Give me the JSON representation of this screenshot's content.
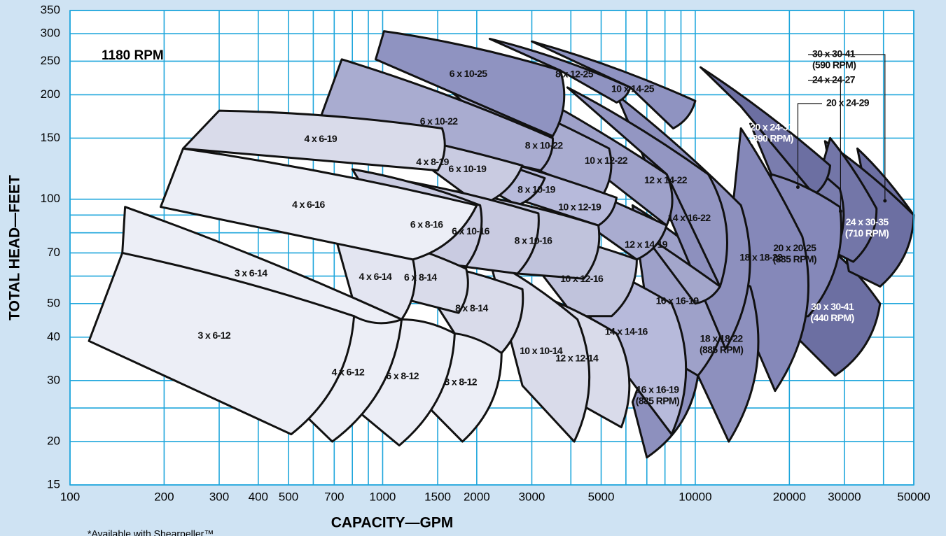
{
  "chart_data": {
    "type": "region",
    "annotation": "1180 RPM",
    "footnote": "*Available with Shearpeller™",
    "x_label": "CAPACITY—GPM",
    "y_label": "TOTAL HEAD—FEET",
    "log_x": true,
    "log_y": true,
    "grid": true,
    "xlim": [
      100,
      50000
    ],
    "ylim": [
      15,
      350
    ],
    "xticks": [
      100,
      200,
      300,
      400,
      500,
      700,
      1000,
      1500,
      2000,
      3000,
      5000,
      10000,
      20000,
      30000,
      50000
    ],
    "yticks": [
      15,
      20,
      30,
      40,
      50,
      70,
      100,
      150,
      200,
      250,
      300,
      350
    ],
    "xgrid": [
      600,
      800,
      900,
      4000,
      6000,
      7000,
      8000,
      9000,
      40000
    ],
    "ygrid": [
      25,
      60,
      80,
      90
    ],
    "regions": [
      {
        "label": [
          "3 x 6-12"
        ],
        "color": "#eceef6",
        "text_color": "#111111",
        "points": [
          [
            147,
            70
          ],
          [
            810,
            46
          ],
          [
            510,
            21
          ],
          [
            115,
            39
          ]
        ]
      },
      {
        "label": [
          "3 x 6-14"
        ],
        "color": "#eceef6",
        "text_color": "#111111",
        "points": [
          [
            150,
            95
          ],
          [
            1150,
            45
          ],
          [
            810,
            46
          ],
          [
            147,
            70
          ]
        ]
      },
      {
        "label": [
          "4 x 6-12"
        ],
        "color": "#eceef6",
        "text_color": "#111111",
        "points": [
          [
            810,
            46
          ],
          [
            1150,
            45
          ],
          [
            690,
            20
          ],
          [
            560,
            24
          ]
        ]
      },
      {
        "label": [
          "6 x 8-12"
        ],
        "color": "#eceef6",
        "text_color": "#111111",
        "points": [
          [
            1150,
            45
          ],
          [
            1700,
            41
          ],
          [
            1130,
            19.5
          ],
          [
            810,
            25
          ]
        ]
      },
      {
        "label": [
          "8 x 8-12"
        ],
        "color": "#eceef6",
        "text_color": "#111111",
        "points": [
          [
            1700,
            41
          ],
          [
            2400,
            36
          ],
          [
            1800,
            20
          ],
          [
            1350,
            26
          ]
        ]
      },
      {
        "label": [
          "4 x 6-16"
        ],
        "color": "#eceef6",
        "text_color": "#111111",
        "points": [
          [
            230,
            140
          ],
          [
            2000,
            96
          ],
          [
            1250,
            67
          ],
          [
            195,
            95
          ]
        ]
      },
      {
        "label": [
          "4 x 6-14"
        ],
        "color": "#e3e5f1",
        "text_color": "#111111",
        "points": [
          [
            700,
            80
          ],
          [
            1250,
            67
          ],
          [
            1150,
            45
          ],
          [
            800,
            52
          ]
        ]
      },
      {
        "label": [
          "6 x 8-14"
        ],
        "color": "#d9dbea",
        "text_color": "#111111",
        "points": [
          [
            830,
            80
          ],
          [
            1850,
            63
          ],
          [
            1750,
            47
          ],
          [
            1130,
            52
          ]
        ]
      },
      {
        "label": [
          "8 x 8-14"
        ],
        "color": "#d9dbea",
        "text_color": "#111111",
        "points": [
          [
            1200,
            67
          ],
          [
            2800,
            55
          ],
          [
            2400,
            36
          ],
          [
            1700,
            41
          ]
        ]
      },
      {
        "label": [
          "4 x 6-19"
        ],
        "color": "#d9dbea",
        "text_color": "#111111",
        "points": [
          [
            300,
            180
          ],
          [
            1550,
            160
          ],
          [
            1500,
            121
          ],
          [
            230,
            140
          ]
        ]
      },
      {
        "label": [
          "6 x 8-16"
        ],
        "color": "#c9cbe1",
        "text_color": "#111111",
        "points": [
          [
            800,
            122
          ],
          [
            2050,
            96
          ],
          [
            1850,
            64
          ],
          [
            1200,
            67
          ]
        ]
      },
      {
        "label": [
          "6 x 10-16"
        ],
        "color": "#c9cbe1",
        "text_color": "#111111",
        "points": [
          [
            870,
            118
          ],
          [
            3150,
            91
          ],
          [
            2700,
            61
          ],
          [
            1800,
            64
          ]
        ]
      },
      {
        "label": [
          "4 x 8-19"
        ],
        "color": "#c9cbe1",
        "text_color": "#111111",
        "points": [
          [
            580,
            170
          ],
          [
            2800,
            125
          ],
          [
            2050,
            96
          ],
          [
            1300,
            130
          ]
        ]
      },
      {
        "label": [
          "10 x 10-14"
        ],
        "color": "#d9dbea",
        "text_color": "#111111",
        "points": [
          [
            2200,
            67
          ],
          [
            4200,
            45
          ],
          [
            4100,
            20
          ],
          [
            2800,
            29
          ]
        ]
      },
      {
        "label": [
          "12 x 12-14"
        ],
        "color": "#d9dbea",
        "text_color": "#111111",
        "points": [
          [
            2800,
            55
          ],
          [
            5600,
            41
          ],
          [
            5800,
            22
          ],
          [
            3350,
            29
          ]
        ]
      },
      {
        "label": [
          "8 x 10-16"
        ],
        "color": "#c0c3dc",
        "text_color": "#111111",
        "points": [
          [
            1450,
            108
          ],
          [
            4900,
            84
          ],
          [
            4400,
            59
          ],
          [
            2700,
            61
          ]
        ]
      },
      {
        "label": [
          "6 x 10-19"
        ],
        "color": "#b7badb",
        "text_color": "#111111",
        "points": [
          [
            800,
            165
          ],
          [
            3300,
            115
          ],
          [
            2700,
            96
          ],
          [
            1700,
            121
          ]
        ]
      },
      {
        "label": [
          "6 x 10-22"
        ],
        "color": "#a9acd0",
        "text_color": "#111111",
        "points": [
          [
            740,
            253
          ],
          [
            3500,
            150
          ],
          [
            3200,
            121
          ],
          [
            630,
            170
          ]
        ]
      },
      {
        "label": [
          "10 x 12-16"
        ],
        "color": "#c0c3dc",
        "text_color": "#111111",
        "points": [
          [
            2450,
            84
          ],
          [
            6500,
            67
          ],
          [
            5400,
            46
          ],
          [
            4100,
            46
          ]
        ]
      },
      {
        "label": [
          "14 x 14-16"
        ],
        "color": "#b7badb",
        "text_color": "#111111",
        "points": [
          [
            3700,
            71
          ],
          [
            8400,
            50
          ],
          [
            8400,
            21
          ],
          [
            5000,
            39
          ]
        ]
      },
      {
        "label": [
          "8 x 10-19"
        ],
        "color": "#b7badb",
        "text_color": "#111111",
        "points": [
          [
            1250,
            150
          ],
          [
            5600,
            101
          ],
          [
            4900,
            84
          ],
          [
            2700,
            100
          ]
        ]
      },
      {
        "label": [
          "10 x 12-19"
        ],
        "color": "#a9acd0",
        "text_color": "#111111",
        "points": [
          [
            1700,
            148
          ],
          [
            8100,
            84
          ],
          [
            6500,
            67
          ],
          [
            3700,
            96
          ]
        ]
      },
      {
        "label": [
          "6 x 10-25"
        ],
        "color": "#8f93c1",
        "text_color": "#111111",
        "points": [
          [
            1010,
            305
          ],
          [
            3700,
            235
          ],
          [
            3500,
            152
          ],
          [
            950,
            253
          ]
        ]
      },
      {
        "label": [
          "8 x 10-22"
        ],
        "color": "#a9acd0",
        "text_color": "#111111",
        "points": [
          [
            1320,
            245
          ],
          [
            5300,
            140
          ],
          [
            5000,
            101
          ],
          [
            3300,
            118
          ]
        ]
      },
      {
        "label": [
          "8 x 12-25"
        ],
        "color": "#8f93c1",
        "text_color": "#111111",
        "points": [
          [
            2200,
            290
          ],
          [
            6200,
            210
          ],
          [
            5600,
            190
          ],
          [
            3700,
            235
          ]
        ]
      },
      {
        "label": [
          "10 x 14-25"
        ],
        "color": "#8f93c1",
        "text_color": "#111111",
        "points": [
          [
            3000,
            285
          ],
          [
            10000,
            192
          ],
          [
            8500,
            160
          ],
          [
            6200,
            210
          ]
        ]
      },
      {
        "label": [
          "10 x 12-22"
        ],
        "color": "#9ea1c9",
        "text_color": "#111111",
        "points": [
          [
            2200,
            235
          ],
          [
            8100,
            118
          ],
          [
            8100,
            84
          ],
          [
            5000,
            118
          ]
        ]
      },
      {
        "label": [
          "12 x 14-19"
        ],
        "color": "#a3a6cb",
        "text_color": "#111111",
        "points": [
          [
            3000,
            125
          ],
          [
            12000,
            56
          ],
          [
            10000,
            50
          ],
          [
            6500,
            84
          ]
        ]
      },
      {
        "label": [
          "12 x 14-22"
        ],
        "color": "#9396c2",
        "text_color": "#111111",
        "points": [
          [
            3900,
            210
          ],
          [
            11000,
            118
          ],
          [
            12000,
            56
          ],
          [
            8100,
            118
          ]
        ]
      },
      {
        "label": [
          "14 x 16-22"
        ],
        "color": "#8d90be",
        "text_color": "#111111",
        "points": [
          [
            5600,
            200
          ],
          [
            14000,
            96
          ],
          [
            12500,
            37
          ],
          [
            8500,
            84
          ]
        ]
      },
      {
        "label": [
          "16 x 16-19"
        ],
        "color": "#9ea1c9",
        "text_color": "#111111",
        "points": [
          [
            6300,
            96
          ],
          [
            12500,
            60
          ],
          [
            10200,
            31
          ],
          [
            7300,
            37
          ]
        ]
      },
      {
        "label": [
          "16 x 16-19",
          "(885 RPM)"
        ],
        "color": "#8d90be",
        "text_color": "#111111",
        "points": [
          [
            7300,
            37
          ],
          [
            10200,
            31
          ],
          [
            7000,
            18
          ],
          [
            6300,
            26
          ]
        ]
      },
      {
        "label": [
          "18 x 18-22",
          "(885 RPM)"
        ],
        "color": "#8d90be",
        "text_color": "#111111",
        "points": [
          [
            11000,
            60
          ],
          [
            15000,
            56
          ],
          [
            12800,
            20
          ],
          [
            10200,
            31
          ]
        ]
      },
      {
        "label": [
          "18 x 18-22"
        ],
        "color": "#8588b9",
        "text_color": "#111111",
        "points": [
          [
            14000,
            160
          ],
          [
            22000,
            78
          ],
          [
            18000,
            28
          ],
          [
            12500,
            60
          ]
        ]
      },
      {
        "label": [
          "20 x 20-25",
          "(885 RPM)"
        ],
        "color": "#8588b9",
        "text_color": "#111111",
        "points": [
          [
            17500,
            118
          ],
          [
            29000,
            95
          ],
          [
            23000,
            46
          ],
          [
            16000,
            45
          ]
        ]
      },
      {
        "label": [
          "20 x 24-31",
          "(890 RPM)"
        ],
        "color": "#6c6fa2",
        "text_color": "#ffffff",
        "points": [
          [
            10400,
            240
          ],
          [
            27000,
            125
          ],
          [
            24000,
            103
          ],
          [
            14000,
            185
          ]
        ]
      },
      {
        "label": [
          "20 x 24-29"
        ],
        "callout": true,
        "color": "#7a7dae",
        "text_color": "#111111",
        "points": [
          [
            15000,
            165
          ],
          [
            29000,
            107
          ],
          [
            27000,
            66
          ],
          [
            17500,
            118
          ]
        ]
      },
      {
        "label": [
          "24 x 24-27"
        ],
        "callout": true,
        "color": "#7376a8",
        "text_color": "#111111",
        "points": [
          [
            27000,
            150
          ],
          [
            38000,
            94
          ],
          [
            32000,
            66
          ],
          [
            22000,
            78
          ]
        ]
      },
      {
        "label": [
          "24 x 30-35",
          "(710 RPM)"
        ],
        "color": "#6c6fa2",
        "text_color": "#ffffff",
        "points": [
          [
            26000,
            147
          ],
          [
            50000,
            90
          ],
          [
            39000,
            56
          ],
          [
            31000,
            62
          ]
        ]
      },
      {
        "label": [
          "30 x 30-41",
          "(590 RPM)"
        ],
        "callout": true,
        "color": "#6c6fa2",
        "text_color": "#111111",
        "points": [
          [
            33000,
            140
          ],
          [
            50000,
            90
          ],
          [
            45000,
            80
          ],
          [
            36000,
            95
          ]
        ]
      },
      {
        "label": [
          "30 x 30-41",
          "(440 RPM)"
        ],
        "color": "#6c6fa2",
        "text_color": "#ffffff",
        "points": [
          [
            28000,
            70
          ],
          [
            39000,
            50
          ],
          [
            28000,
            31
          ],
          [
            18500,
            45
          ]
        ]
      }
    ]
  }
}
